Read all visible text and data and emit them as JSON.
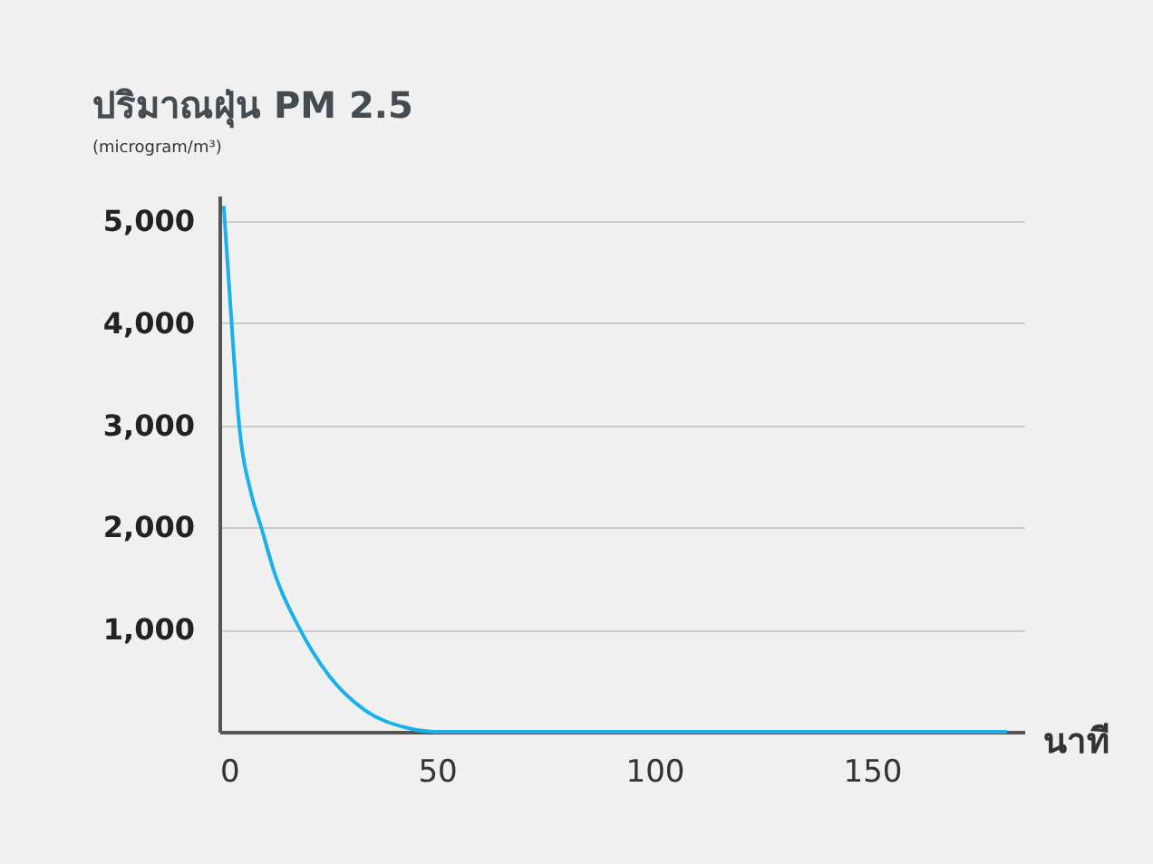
{
  "chart_data": {
    "type": "line",
    "title": "ปริมาณฝุ่น PM 2.5",
    "subtitle": "(microgram/m³)",
    "xlabel": "นาที",
    "x": [
      1,
      2.5,
      4.5,
      7.4,
      9.5,
      12.8,
      18.2,
      25.2,
      33.5,
      43,
      50,
      100,
      150,
      181
    ],
    "series": [
      {
        "color": "#1ab0ec",
        "values": [
          5150,
          4200,
          3030,
          2320,
          2020,
          1540,
          1030,
          550,
          210,
          40,
          0,
          0,
          0,
          0
        ]
      }
    ],
    "xlim": [
      0,
      185
    ],
    "xticks": [
      0,
      50,
      100,
      150
    ],
    "ylim": [
      0,
      5250
    ],
    "yticks": [
      {
        "value": 1000,
        "label": "1,000"
      },
      {
        "value": 2000,
        "label": "2,000"
      },
      {
        "value": 3000,
        "label": "3,000"
      },
      {
        "value": 4000,
        "label": "4,000"
      },
      {
        "value": 5000,
        "label": "5,000"
      }
    ],
    "grid": "y",
    "legend": false,
    "marker": "none",
    "line_style": "solid"
  }
}
